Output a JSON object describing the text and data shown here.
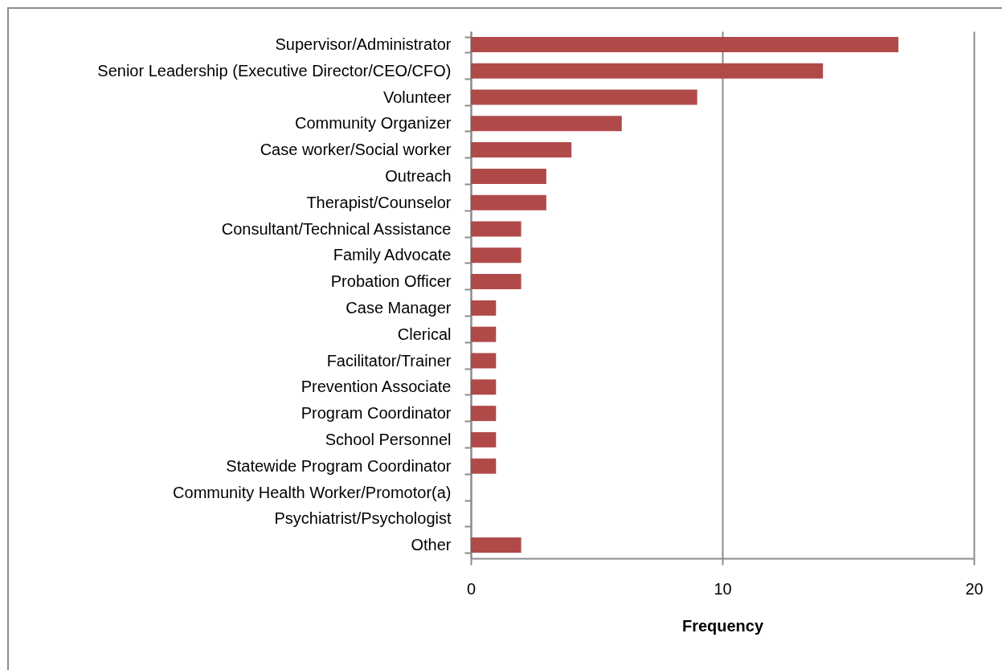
{
  "chart_data": {
    "type": "bar",
    "orientation": "horizontal",
    "categories": [
      "Supervisor/Administrator",
      "Senior Leadership (Executive Director/CEO/CFO)",
      "Volunteer",
      "Community Organizer",
      "Case worker/Social worker",
      "Outreach",
      "Therapist/Counselor",
      "Consultant/Technical Assistance",
      "Family Advocate",
      "Probation Officer",
      "Case Manager",
      "Clerical",
      "Facilitator/Trainer",
      "Prevention Associate",
      "Program Coordinator",
      "School Personnel",
      "Statewide Program Coordinator",
      "Community Health Worker/Promotor(a)",
      "Psychiatrist/Psychologist",
      "Other"
    ],
    "values": [
      17,
      14,
      9,
      6,
      4,
      3,
      3,
      2,
      2,
      2,
      1,
      1,
      1,
      1,
      1,
      1,
      1,
      0,
      0,
      2
    ],
    "color": "#b04a48",
    "xlabel": "Frequency",
    "xlim": [
      0,
      20
    ],
    "xticks": [
      0,
      10,
      20
    ],
    "grid": "x"
  }
}
